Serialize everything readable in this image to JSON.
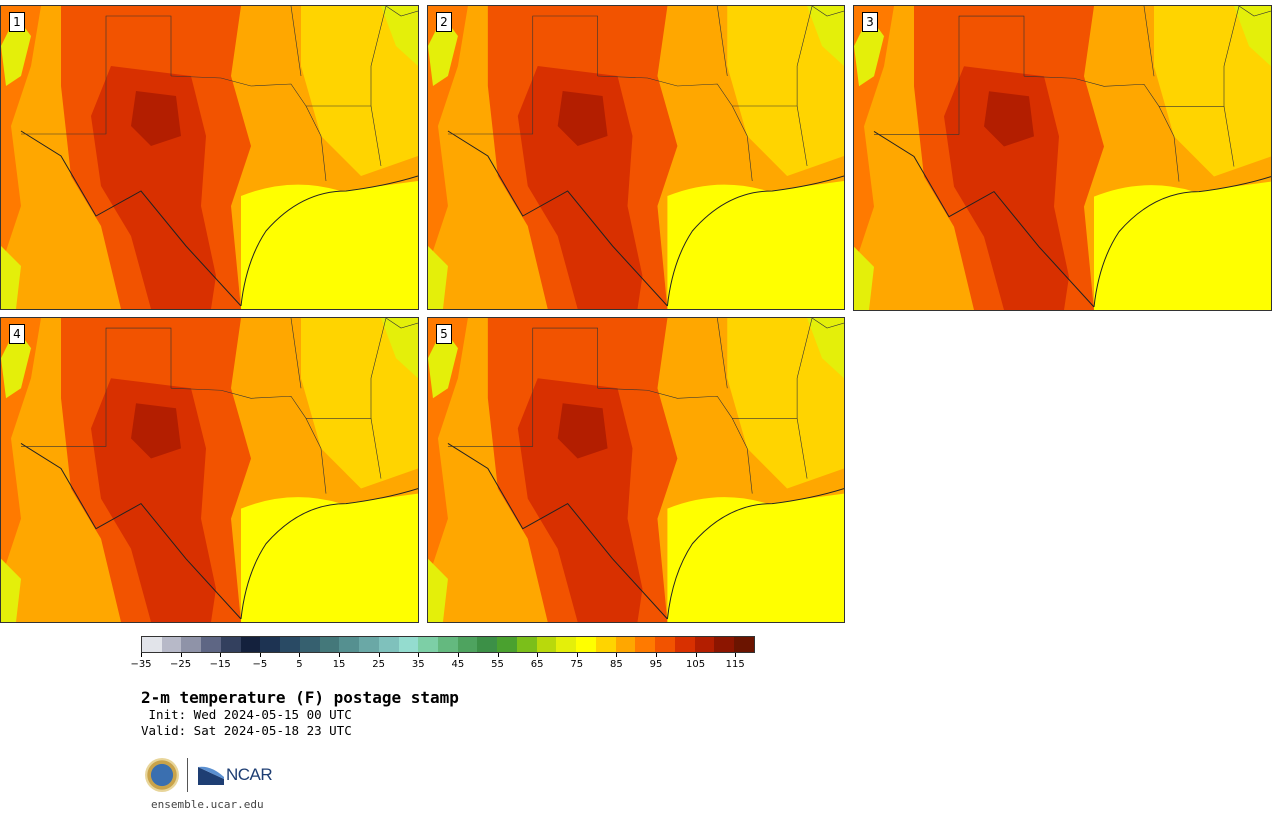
{
  "panels": [
    {
      "label": "1"
    },
    {
      "label": "2"
    },
    {
      "label": "3"
    },
    {
      "label": "4"
    },
    {
      "label": "5"
    }
  ],
  "colorbar": {
    "colors": [
      "#e2e4ea",
      "#b7b9c8",
      "#8f93a8",
      "#5e6684",
      "#33405e",
      "#14213d",
      "#1d3352",
      "#294a64",
      "#36606f",
      "#44787a",
      "#559090",
      "#6aa8a6",
      "#7fc1bc",
      "#94dccf",
      "#7dcfa6",
      "#64b97f",
      "#4ea35f",
      "#3c9047",
      "#4aa12f",
      "#7bbf1a",
      "#b9d90c",
      "#e4ef0a",
      "#ffff00",
      "#ffd400",
      "#ffa700",
      "#ff7a00",
      "#f25300",
      "#d83000",
      "#b31e00",
      "#8c1500",
      "#6b1400"
    ],
    "ticks": [
      "−35",
      "−25",
      "−15",
      "−5",
      "5",
      "15",
      "25",
      "35",
      "45",
      "55",
      "65",
      "75",
      "85",
      "95",
      "105",
      "115"
    ]
  },
  "title": "2-m temperature (F) postage stamp",
  "init": " Init: Wed 2024-05-15 00 UTC",
  "valid": "Valid: Sat 2024-05-18 23 UTC",
  "logos": {
    "nsf": "NSF",
    "ncar": "NCAR"
  },
  "site": "ensemble.ucar.edu"
}
